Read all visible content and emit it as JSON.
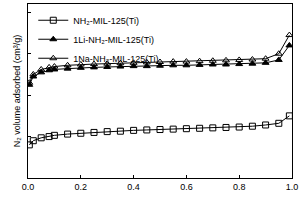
{
  "chart_data": {
    "type": "line",
    "y_label": "N₂ volume adsorbed (cm³/g)",
    "xlim": [
      0,
      1.0
    ],
    "xticks": [
      {
        "value": 0,
        "label": "0.0"
      },
      0.2,
      0.4,
      0.6,
      0.8,
      {
        "value": 1,
        "label": "1.0"
      }
    ],
    "ylim": [
      100,
      520
    ],
    "yticks": [
      100,
      200,
      300,
      400,
      500
    ],
    "tick_labels": "x",
    "grid": false,
    "legend": "top left",
    "series": [
      {
        "name": "NH₂-MIL-125(Ti)",
        "color": "#000000",
        "marker": "square-open",
        "line_style": "solid",
        "x": [
          0.005,
          0.02,
          0.05,
          0.08,
          0.1,
          0.15,
          0.2,
          0.25,
          0.3,
          0.35,
          0.4,
          0.45,
          0.5,
          0.55,
          0.6,
          0.65,
          0.7,
          0.75,
          0.8,
          0.85,
          0.9,
          0.95,
          0.99
        ],
        "values": [
          180,
          190,
          197,
          200,
          203,
          206,
          208,
          210,
          212,
          213,
          215,
          216,
          217,
          218,
          219,
          220,
          221,
          222,
          223,
          225,
          228,
          232,
          250
        ]
      },
      {
        "name": "1Li-NH₂-MIL-125(Ti)",
        "color": "#000000",
        "marker": "triangle-up",
        "line_style": "solid",
        "x": [
          0.005,
          0.02,
          0.05,
          0.08,
          0.1,
          0.15,
          0.2,
          0.25,
          0.3,
          0.35,
          0.4,
          0.45,
          0.5,
          0.55,
          0.6,
          0.65,
          0.7,
          0.75,
          0.8,
          0.85,
          0.9,
          0.95,
          0.99
        ],
        "values": [
          325,
          345,
          355,
          360,
          362,
          364,
          366,
          367,
          368,
          369,
          370,
          370,
          371,
          372,
          372,
          373,
          374,
          374,
          375,
          376,
          378,
          385,
          420
        ]
      },
      {
        "name": "1Na-NH₂-MIL-125(Ti)",
        "color": "#000000",
        "marker": "triangle-up-open",
        "line_style": "solid",
        "x": [
          0.005,
          0.02,
          0.05,
          0.08,
          0.1,
          0.15,
          0.2,
          0.25,
          0.3,
          0.35,
          0.4,
          0.45,
          0.5,
          0.55,
          0.6,
          0.65,
          0.7,
          0.75,
          0.8,
          0.85,
          0.9,
          0.95,
          0.99
        ],
        "values": [
          330,
          350,
          362,
          367,
          369,
          372,
          374,
          375,
          376,
          377,
          378,
          379,
          380,
          381,
          381,
          382,
          383,
          384,
          385,
          386,
          388,
          400,
          445
        ]
      }
    ]
  }
}
